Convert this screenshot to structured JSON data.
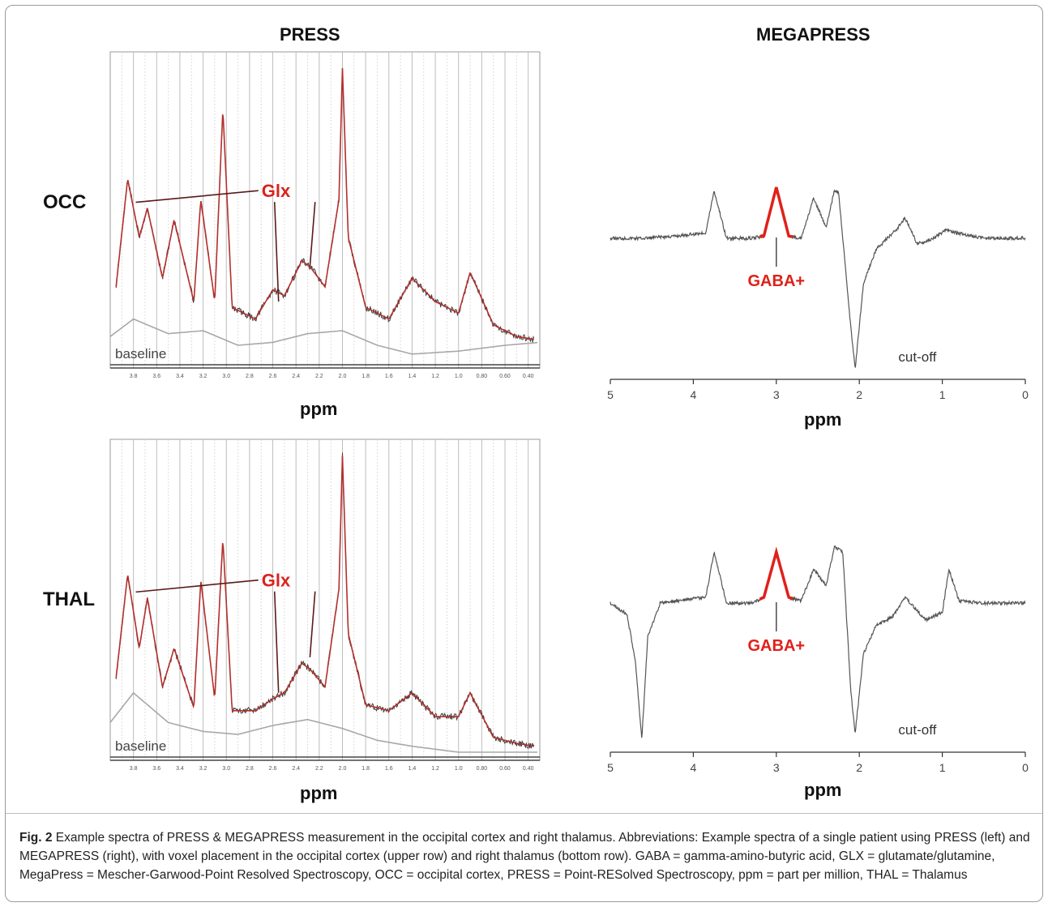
{
  "figure": {
    "left_title": "PRESS",
    "right_title": "MEGAPRESS",
    "rows": [
      "OCC",
      "THAL"
    ],
    "xlabel": "ppm",
    "annotations": {
      "glx": "Glx",
      "baseline": "baseline",
      "gaba": "GABA+",
      "cutoff": "cut-off"
    },
    "press_ticks": [
      "3.8",
      "3.6",
      "3.4",
      "3.2",
      "3.0",
      "2.8",
      "2.6",
      "2.4",
      "2.2",
      "2.0",
      "1.8",
      "1.6",
      "1.4",
      "1.2",
      "1.0",
      "0.80",
      "0.60",
      "0.40"
    ],
    "mega_ticks": [
      "5",
      "4",
      "3",
      "2",
      "1",
      "0"
    ],
    "colors": {
      "fit": "#b3302d",
      "gaba": "#e0201a",
      "data": "#444444",
      "grid": "#bdbdbd"
    }
  },
  "chart_data": [
    {
      "type": "line",
      "title": "PRESS",
      "panel": "OCC",
      "xlabel": "ppm",
      "xlim": [
        4.0,
        0.3
      ],
      "series": [
        {
          "name": "Glx",
          "x": [
            3.95,
            3.85,
            3.75,
            3.68,
            3.55,
            3.45,
            3.28,
            3.22,
            3.1,
            3.03,
            2.95,
            2.75,
            2.6,
            2.5,
            2.35,
            2.28,
            2.15,
            2.03,
            2.0,
            1.95,
            1.8,
            1.6,
            1.4,
            1.2,
            1.0,
            0.9,
            0.7,
            0.5,
            0.35
          ],
          "y": [
            0.25,
            0.62,
            0.42,
            0.52,
            0.28,
            0.48,
            0.2,
            0.55,
            0.2,
            0.86,
            0.18,
            0.14,
            0.24,
            0.22,
            0.34,
            0.32,
            0.25,
            0.55,
            1.0,
            0.42,
            0.18,
            0.14,
            0.28,
            0.2,
            0.16,
            0.3,
            0.12,
            0.08,
            0.07
          ]
        },
        {
          "name": "baseline",
          "x": [
            4.0,
            3.8,
            3.5,
            3.2,
            2.9,
            2.6,
            2.3,
            2.0,
            1.7,
            1.4,
            1.0,
            0.6,
            0.3
          ],
          "y": [
            0.08,
            0.14,
            0.09,
            0.1,
            0.05,
            0.06,
            0.09,
            0.1,
            0.05,
            0.02,
            0.03,
            0.05,
            0.06
          ]
        }
      ]
    },
    {
      "type": "line",
      "title": "MEGAPRESS",
      "panel": "OCC",
      "xlabel": "ppm",
      "xlim": [
        5,
        0
      ],
      "series": [
        {
          "name": "GABA+",
          "x": [
            5,
            4.6,
            4.2,
            3.85,
            3.75,
            3.6,
            3.3,
            3.15,
            3.0,
            2.85,
            2.7,
            2.55,
            2.4,
            2.3,
            2.25,
            2.1,
            2.05,
            1.95,
            1.8,
            1.55,
            1.45,
            1.3,
            1.1,
            0.95,
            0.85,
            0.5,
            0
          ],
          "y": [
            0.0,
            0.0,
            0.02,
            0.05,
            0.42,
            0.0,
            0.0,
            0.02,
            0.45,
            0.02,
            0.0,
            0.35,
            0.1,
            0.42,
            0.4,
            -0.8,
            -1.15,
            -0.4,
            -0.1,
            0.08,
            0.18,
            -0.05,
            0.0,
            0.08,
            0.05,
            0.0,
            0.0
          ]
        }
      ]
    },
    {
      "type": "line",
      "title": "PRESS",
      "panel": "THAL",
      "xlabel": "ppm",
      "xlim": [
        4.0,
        0.3
      ],
      "series": [
        {
          "name": "Glx",
          "x": [
            3.95,
            3.85,
            3.75,
            3.68,
            3.55,
            3.45,
            3.28,
            3.22,
            3.1,
            3.03,
            2.95,
            2.75,
            2.6,
            2.5,
            2.35,
            2.28,
            2.15,
            2.03,
            2.0,
            1.95,
            1.8,
            1.6,
            1.4,
            1.2,
            1.0,
            0.9,
            0.7,
            0.5,
            0.35
          ],
          "y": [
            0.25,
            0.6,
            0.35,
            0.52,
            0.22,
            0.35,
            0.15,
            0.58,
            0.18,
            0.72,
            0.14,
            0.14,
            0.18,
            0.2,
            0.3,
            0.28,
            0.22,
            0.55,
            1.0,
            0.4,
            0.16,
            0.14,
            0.2,
            0.12,
            0.12,
            0.2,
            0.05,
            0.03,
            0.02
          ]
        },
        {
          "name": "baseline",
          "x": [
            4.0,
            3.8,
            3.5,
            3.2,
            2.9,
            2.6,
            2.3,
            2.0,
            1.7,
            1.4,
            1.0,
            0.6,
            0.3
          ],
          "y": [
            0.1,
            0.2,
            0.1,
            0.07,
            0.06,
            0.09,
            0.11,
            0.08,
            0.04,
            0.02,
            0.0,
            0.0,
            0.0
          ]
        }
      ]
    },
    {
      "type": "line",
      "title": "MEGAPRESS",
      "panel": "THAL",
      "xlabel": "ppm",
      "xlim": [
        5,
        0
      ],
      "series": [
        {
          "name": "GABA+",
          "x": [
            5,
            4.8,
            4.7,
            4.62,
            4.55,
            4.4,
            3.85,
            3.75,
            3.6,
            3.3,
            3.15,
            3.0,
            2.85,
            2.7,
            2.55,
            2.4,
            2.3,
            2.2,
            2.1,
            2.05,
            1.95,
            1.8,
            1.6,
            1.45,
            1.2,
            1.0,
            0.92,
            0.8,
            0.5,
            0
          ],
          "y": [
            0.0,
            -0.1,
            -0.5,
            -1.2,
            -0.3,
            0.0,
            0.05,
            0.45,
            0.0,
            0.0,
            0.05,
            0.45,
            0.05,
            0.02,
            0.3,
            0.15,
            0.5,
            0.45,
            -0.8,
            -1.15,
            -0.45,
            -0.2,
            -0.12,
            0.05,
            -0.15,
            -0.08,
            0.3,
            0.02,
            0.0,
            0.0
          ]
        }
      ]
    }
  ],
  "caption": {
    "label": "Fig. 2",
    "text": "Example spectra of PRESS & MEGAPRESS measurement in the occipital cortex and right thalamus. Abbreviations: Example spectra of a single patient using PRESS (left) and MEGAPRESS (right), with voxel placement in the occipital cortex (upper row) and right thalamus (bottom row). GABA = gamma-amino-butyric acid, GLX = glutamate/glutamine, MegaPress = Mescher-Garwood-Point Resolved Spectroscopy, OCC = occipital cortex, PRESS = Point-RESolved Spectroscopy, ppm = part per million, THAL = Thalamus"
  }
}
